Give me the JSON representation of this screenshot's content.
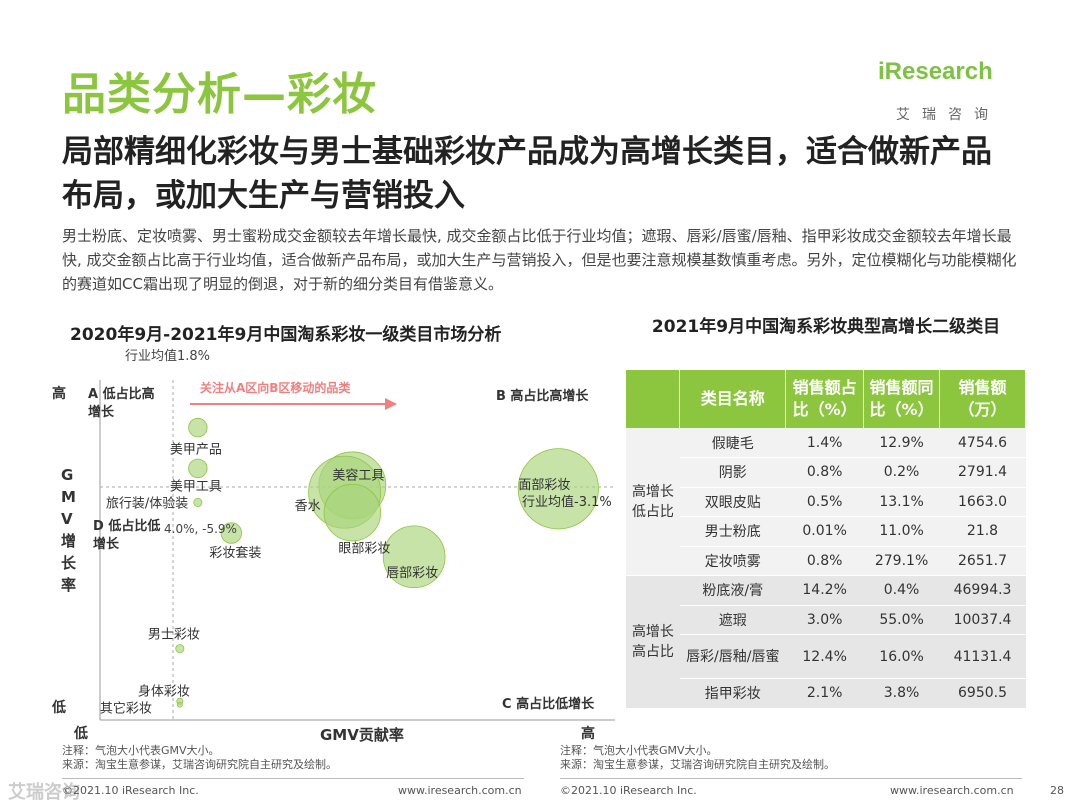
{
  "header": {
    "title": "品类分析—彩妆",
    "logo_main": "iResearch",
    "logo_sub": "艾瑞咨询",
    "subtitle": "局部精细化彩妆与男士基础彩妆产品成为高增长类目，适合做新产品布局，或加大生产与营销投入",
    "description": "男士粉底、定妆喷雾、男士蜜粉成交金额较去年增长最快, 成交金额占比低于行业均值；遮瑕、唇彩/唇蜜/唇釉、指甲彩妆成交金额较去年增长最快, 成交金额占比高于行业均值，适合做新产品布局，或加大生产与营销投入，但是也要注意规模基数慎重考虑。另外，定位模糊化与功能模糊化的赛道如CC霜出现了明显的倒退，对于新的细分类目有借鉴意义。"
  },
  "chart_data": {
    "type": "scatter",
    "title": "2020年9月-2021年9月中国淘系彩妆一级类目市场分析",
    "xlabel": "GMV贡献率",
    "ylabel": "GMV增长率",
    "x_low": "低",
    "x_high": "高",
    "y_high": "高",
    "y_low": "低",
    "ref_x_label": "行业均值1.8%",
    "ref_y_label": "行业均值-3.1%",
    "arrow_label": "关注从A区向B区移动的品类",
    "quadrants": {
      "A": "A 低占比高增长",
      "B": "B 高占比高增长",
      "C": "C 高占比低增长",
      "D": "D 低占比低增长"
    },
    "points": [
      {
        "name": "美甲产品",
        "cx": 0.19,
        "cy": 0.14,
        "r": 0.018
      },
      {
        "name": "美甲工具",
        "cx": 0.19,
        "cy": 0.26,
        "r": 0.018
      },
      {
        "name": "旅行装/体验装",
        "cx": 0.19,
        "cy": 0.36,
        "r": 0.008
      },
      {
        "name": "美容工具",
        "cx": 0.49,
        "cy": 0.31,
        "r": 0.065
      },
      {
        "name": "香水",
        "cx": 0.475,
        "cy": 0.33,
        "r": 0.07
      },
      {
        "name": "眼部彩妆",
        "cx": 0.49,
        "cy": 0.39,
        "r": 0.055
      },
      {
        "name": "面部彩妆",
        "cx": 0.89,
        "cy": 0.32,
        "r": 0.078
      },
      {
        "name": "唇部彩妆",
        "cx": 0.61,
        "cy": 0.52,
        "r": 0.06
      },
      {
        "name": "彩妆套装",
        "cx": 0.255,
        "cy": 0.45,
        "r": 0.02
      },
      {
        "name": "男士彩妆",
        "cx": 0.155,
        "cy": 0.79,
        "r": 0.008
      },
      {
        "name": "身体彩妆",
        "cx": 0.155,
        "cy": 0.945,
        "r": 0.006
      },
      {
        "name": "其它彩妆",
        "cx": 0.155,
        "cy": 0.955,
        "r": 0.005
      }
    ],
    "annotation_taozhuang": "4.0%, -5.9%"
  },
  "table": {
    "title": "2021年9月中国淘系彩妆典型高增长二级类目",
    "headers": [
      "类目名称",
      "销售额占比（%）",
      "销售额同比（%）",
      "销售额（万）"
    ],
    "groups": [
      {
        "label": "高增长低占比",
        "rows": [
          [
            "假睫毛",
            "1.4%",
            "12.9%",
            "4754.6"
          ],
          [
            "阴影",
            "0.8%",
            "0.2%",
            "2791.4"
          ],
          [
            "双眼皮贴",
            "0.5%",
            "13.1%",
            "1663.0"
          ],
          [
            "男士粉底",
            "0.01%",
            "11.0%",
            "21.8"
          ],
          [
            "定妆喷雾",
            "0.8%",
            "279.1%",
            "2651.7"
          ]
        ]
      },
      {
        "label": "高增长高占比",
        "rows": [
          [
            "粉底液/膏",
            "14.2%",
            "0.4%",
            "46994.3"
          ],
          [
            "遮瑕",
            "3.0%",
            "55.0%",
            "10037.4"
          ],
          [
            "唇彩/唇釉/唇蜜",
            "12.4%",
            "16.0%",
            "41131.4"
          ],
          [
            "指甲彩妆",
            "2.1%",
            "3.8%",
            "6950.5"
          ]
        ]
      }
    ]
  },
  "notes": {
    "left_1": "注释：气泡大小代表GMV大小。",
    "left_2": "来源：淘宝生意参谋，艾瑞咨询研究院自主研究及绘制。",
    "right_1": "注释：气泡大小代表GMV大小。",
    "right_2": "来源：淘宝生意参谋，艾瑞咨询研究院自主研究及绘制。"
  },
  "footer": {
    "left_copy": "©2021.10 iResearch Inc.",
    "left_url": "www.iresearch.com.cn",
    "right_copy": "©2021.10 iResearch Inc.",
    "right_url": "www.iresearch.com.cn",
    "page": "28",
    "watermark": "艾瑞咨询"
  }
}
